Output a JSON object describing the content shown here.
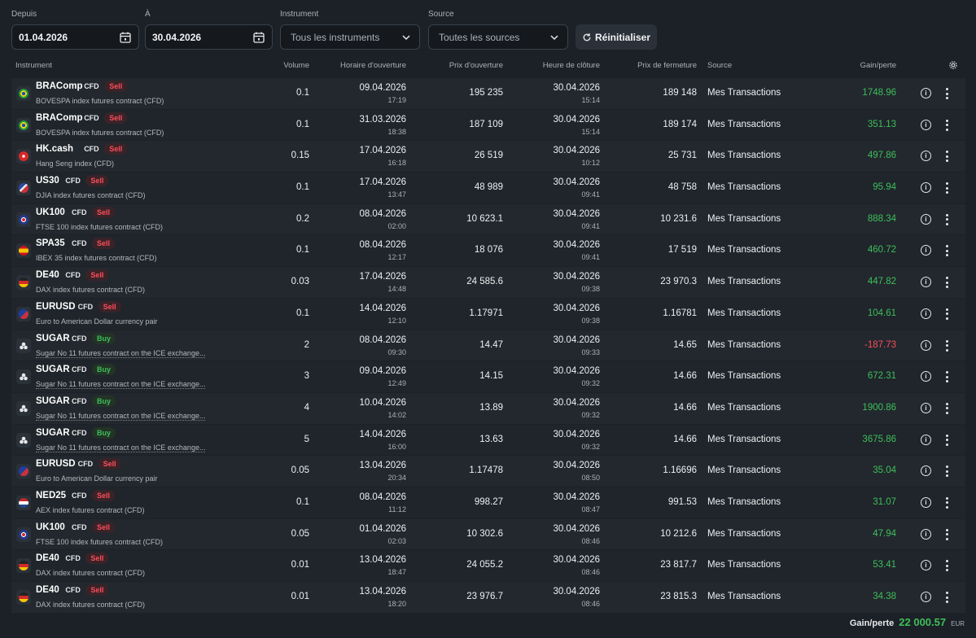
{
  "filters": {
    "from_label": "Depuis",
    "from_value": "01.04.2026",
    "to_label": "À",
    "to_value": "30.04.2026",
    "instrument_label": "Instrument",
    "instrument_value": "Tous les instruments",
    "source_label": "Source",
    "source_value": "Toutes les sources",
    "reset_label": "Réinitialiser"
  },
  "columns": {
    "instrument": "Instrument",
    "volume": "Volume",
    "open_time": "Horaire d'ouverture",
    "open_price": "Prix d'ouverture",
    "close_time": "Heure de clôture",
    "close_price": "Prix de fermeture",
    "source": "Source",
    "pnl": "Gain/perte"
  },
  "colors": {
    "gain": "#3fbf5a",
    "loss": "#ff4d5a",
    "background": "#1c2127"
  },
  "rows": [
    {
      "symbol": "BRAComp",
      "type": "CFD",
      "side": "Sell",
      "desc": "BOVESPA index futures contract (CFD)",
      "flag": "brazil-flag-icon",
      "volume": "0.1",
      "open_date": "09.04.2026",
      "open_time": "17:19",
      "open_price": "195 235",
      "close_date": "30.04.2026",
      "close_time": "15:14",
      "close_price": "189 148",
      "source": "Mes Transactions",
      "pnl": "1748.96"
    },
    {
      "symbol": "BRAComp",
      "type": "CFD",
      "side": "Sell",
      "desc": "BOVESPA index futures contract (CFD)",
      "flag": "brazil-flag-icon",
      "volume": "0.1",
      "open_date": "31.03.2026",
      "open_time": "18:38",
      "open_price": "187 109",
      "close_date": "30.04.2026",
      "close_time": "15:14",
      "close_price": "189 174",
      "source": "Mes Transactions",
      "pnl": "351.13"
    },
    {
      "symbol": "HK.cash",
      "type": "CFD",
      "side": "Sell",
      "desc": "Hang Seng index (CFD)",
      "flag": "hong-kong-flag-icon",
      "volume": "0.15",
      "open_date": "17.04.2026",
      "open_time": "16:18",
      "open_price": "26 519",
      "close_date": "30.04.2026",
      "close_time": "10:12",
      "close_price": "25 731",
      "source": "Mes Transactions",
      "pnl": "497.86"
    },
    {
      "symbol": "US30",
      "type": "CFD",
      "side": "Sell",
      "desc": "DJIA index futures contract (CFD)",
      "flag": "usa-flag-icon",
      "volume": "0.1",
      "open_date": "17.04.2026",
      "open_time": "13:47",
      "open_price": "48 989",
      "close_date": "30.04.2026",
      "close_time": "09:41",
      "close_price": "48 758",
      "source": "Mes Transactions",
      "pnl": "95.94"
    },
    {
      "symbol": "UK100",
      "type": "CFD",
      "side": "Sell",
      "desc": "FTSE 100 index futures contract (CFD)",
      "flag": "uk-flag-icon",
      "volume": "0.2",
      "open_date": "08.04.2026",
      "open_time": "02:00",
      "open_price": "10 623.1",
      "close_date": "30.04.2026",
      "close_time": "09:41",
      "close_price": "10 231.6",
      "source": "Mes Transactions",
      "pnl": "888.34"
    },
    {
      "symbol": "SPA35",
      "type": "CFD",
      "side": "Sell",
      "desc": "IBEX 35 index futures contract (CFD)",
      "flag": "spain-flag-icon",
      "volume": "0.1",
      "open_date": "08.04.2026",
      "open_time": "12:17",
      "open_price": "18 076",
      "close_date": "30.04.2026",
      "close_time": "09:41",
      "close_price": "17 519",
      "source": "Mes Transactions",
      "pnl": "460.72"
    },
    {
      "symbol": "DE40",
      "type": "CFD",
      "side": "Sell",
      "desc": "DAX index futures contract (CFD)",
      "flag": "germany-flag-icon",
      "volume": "0.03",
      "open_date": "17.04.2026",
      "open_time": "14:48",
      "open_price": "24 585.6",
      "close_date": "30.04.2026",
      "close_time": "09:38",
      "close_price": "23 970.3",
      "source": "Mes Transactions",
      "pnl": "447.82"
    },
    {
      "symbol": "EURUSD",
      "type": "CFD",
      "side": "Sell",
      "desc": "Euro to American Dollar currency pair",
      "flag": "eu-us-flag-icon",
      "volume": "0.1",
      "open_date": "14.04.2026",
      "open_time": "12:10",
      "open_price": "1.17971",
      "close_date": "30.04.2026",
      "close_time": "09:38",
      "close_price": "1.16781",
      "source": "Mes Transactions",
      "pnl": "104.61"
    },
    {
      "symbol": "SUGAR",
      "type": "CFD",
      "side": "Buy",
      "desc": "Sugar No 11 futures contract on the ICE exchange...",
      "flag": "commodity-icon",
      "volume": "2",
      "open_date": "08.04.2026",
      "open_time": "09:30",
      "open_price": "14.47",
      "close_date": "30.04.2026",
      "close_time": "09:33",
      "close_price": "14.65",
      "source": "Mes Transactions",
      "pnl": "-187.73"
    },
    {
      "symbol": "SUGAR",
      "type": "CFD",
      "side": "Buy",
      "desc": "Sugar No 11 futures contract on the ICE exchange...",
      "flag": "commodity-icon",
      "volume": "3",
      "open_date": "09.04.2026",
      "open_time": "12:49",
      "open_price": "14.15",
      "close_date": "30.04.2026",
      "close_time": "09:32",
      "close_price": "14.66",
      "source": "Mes Transactions",
      "pnl": "672.31"
    },
    {
      "symbol": "SUGAR",
      "type": "CFD",
      "side": "Buy",
      "desc": "Sugar No 11 futures contract on the ICE exchange...",
      "flag": "commodity-icon",
      "volume": "4",
      "open_date": "10.04.2026",
      "open_time": "14:02",
      "open_price": "13.89",
      "close_date": "30.04.2026",
      "close_time": "09:32",
      "close_price": "14.66",
      "source": "Mes Transactions",
      "pnl": "1900.86"
    },
    {
      "symbol": "SUGAR",
      "type": "CFD",
      "side": "Buy",
      "desc": "Sugar No 11 futures contract on the ICE exchange...",
      "flag": "commodity-icon",
      "volume": "5",
      "open_date": "14.04.2026",
      "open_time": "16:00",
      "open_price": "13.63",
      "close_date": "30.04.2026",
      "close_time": "09:32",
      "close_price": "14.66",
      "source": "Mes Transactions",
      "pnl": "3675.86"
    },
    {
      "symbol": "EURUSD",
      "type": "CFD",
      "side": "Sell",
      "desc": "Euro to American Dollar currency pair",
      "flag": "eu-us-flag-icon",
      "volume": "0.05",
      "open_date": "13.04.2026",
      "open_time": "20:34",
      "open_price": "1.17478",
      "close_date": "30.04.2026",
      "close_time": "08:50",
      "close_price": "1.16696",
      "source": "Mes Transactions",
      "pnl": "35.04"
    },
    {
      "symbol": "NED25",
      "type": "CFD",
      "side": "Sell",
      "desc": "AEX index futures contract (CFD)",
      "flag": "netherlands-flag-icon",
      "volume": "0.1",
      "open_date": "08.04.2026",
      "open_time": "11:12",
      "open_price": "998.27",
      "close_date": "30.04.2026",
      "close_time": "08:47",
      "close_price": "991.53",
      "source": "Mes Transactions",
      "pnl": "31.07"
    },
    {
      "symbol": "UK100",
      "type": "CFD",
      "side": "Sell",
      "desc": "FTSE 100 index futures contract (CFD)",
      "flag": "uk-flag-icon",
      "volume": "0.05",
      "open_date": "01.04.2026",
      "open_time": "02:03",
      "open_price": "10 302.6",
      "close_date": "30.04.2026",
      "close_time": "08:46",
      "close_price": "10 212.6",
      "source": "Mes Transactions",
      "pnl": "47.94"
    },
    {
      "symbol": "DE40",
      "type": "CFD",
      "side": "Sell",
      "desc": "DAX index futures contract (CFD)",
      "flag": "germany-flag-icon",
      "volume": "0.01",
      "open_date": "13.04.2026",
      "open_time": "18:47",
      "open_price": "24 055.2",
      "close_date": "30.04.2026",
      "close_time": "08:46",
      "close_price": "23 817.7",
      "source": "Mes Transactions",
      "pnl": "53.41"
    },
    {
      "symbol": "DE40",
      "type": "CFD",
      "side": "Sell",
      "desc": "DAX index futures contract (CFD)",
      "flag": "germany-flag-icon",
      "volume": "0.01",
      "open_date": "13.04.2026",
      "open_time": "18:20",
      "open_price": "23 976.7",
      "close_date": "30.04.2026",
      "close_time": "08:46",
      "close_price": "23 815.3",
      "source": "Mes Transactions",
      "pnl": "34.38"
    }
  ],
  "footer": {
    "label": "Gain/perte",
    "amount": "22 000.57",
    "currency": "EUR"
  }
}
